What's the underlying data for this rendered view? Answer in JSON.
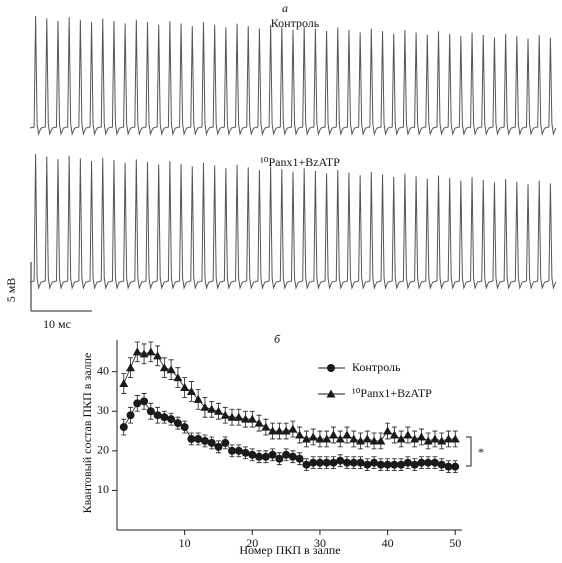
{
  "panel_a": {
    "label": "а",
    "traces": [
      {
        "name": "Контроль"
      },
      {
        "name": "¹⁰Panx1+BzATP"
      }
    ],
    "scale_y": "5 мВ",
    "scale_x": "10 мс"
  },
  "chart_data": {
    "type": "line",
    "panel_label": "б",
    "x_label": "Номер ПКП в залпе",
    "y_label": "Квантовый состав ПКП в залпе",
    "x": [
      1,
      2,
      3,
      4,
      5,
      6,
      7,
      8,
      9,
      10,
      11,
      12,
      13,
      14,
      15,
      16,
      17,
      18,
      19,
      20,
      21,
      22,
      23,
      24,
      25,
      26,
      27,
      28,
      29,
      30,
      31,
      32,
      33,
      34,
      35,
      36,
      37,
      38,
      39,
      40,
      41,
      42,
      43,
      44,
      45,
      46,
      47,
      48,
      49,
      50
    ],
    "series": [
      {
        "name": "Контроль",
        "color": "#1a1a1a",
        "marker": "circle",
        "values": [
          26,
          29,
          32,
          32.5,
          30,
          29,
          28.5,
          28,
          27,
          26,
          23,
          23,
          22.5,
          22,
          21,
          22,
          20,
          20,
          19.5,
          19,
          18.5,
          18.5,
          19,
          18,
          19,
          18.5,
          18,
          16.5,
          17,
          17,
          17,
          17,
          17.5,
          17,
          17,
          17,
          16.5,
          17,
          16.5,
          16.5,
          16.5,
          16.5,
          17,
          16.5,
          17,
          17,
          17,
          16.5,
          16,
          16
        ],
        "errors": [
          2,
          2,
          2,
          2,
          2,
          2,
          1.5,
          1.5,
          1.5,
          1.5,
          1.5,
          1.5,
          1.5,
          1.5,
          1.5,
          1.5,
          1.5,
          1.5,
          1.5,
          1.5,
          1.5,
          1.5,
          1.5,
          1.5,
          1.5,
          1.5,
          1.5,
          1.5,
          1.5,
          1.5,
          1.5,
          1.5,
          1.5,
          1.5,
          1.5,
          1.5,
          1.5,
          1.5,
          1.5,
          1.5,
          1.5,
          1.5,
          1.5,
          1.5,
          1.5,
          1.5,
          1.5,
          1.5,
          1.5,
          1.5
        ]
      },
      {
        "name": "¹⁰Panx1+BzATP",
        "color": "#1a1a1a",
        "marker": "triangle",
        "values": [
          37,
          41,
          45,
          44.5,
          45,
          44,
          41,
          40.5,
          38.5,
          36,
          35,
          33,
          31,
          30.5,
          30,
          29,
          28.5,
          28.5,
          28,
          28,
          27,
          26,
          25,
          25,
          25,
          25.5,
          24,
          23,
          23.5,
          23,
          23,
          24,
          23,
          24,
          23,
          22.5,
          23,
          22.5,
          22.5,
          25,
          24,
          23,
          24,
          23,
          23.5,
          22.5,
          23,
          22.5,
          23,
          23
        ],
        "errors": [
          2.5,
          2.5,
          2.5,
          2.5,
          2.5,
          2.5,
          2.5,
          2.5,
          2.5,
          2.5,
          2.5,
          2.5,
          2.5,
          2,
          2,
          2,
          2,
          2,
          2,
          2,
          2,
          2,
          2,
          2,
          2,
          2,
          2,
          2,
          2,
          2,
          2,
          2,
          2,
          2,
          2,
          2,
          2,
          2,
          2,
          2,
          2,
          2,
          2,
          2,
          2,
          2,
          2,
          2,
          2,
          2
        ]
      }
    ],
    "xlim": [
      0,
      51
    ],
    "ylim": [
      0,
      48
    ],
    "xticks": [
      10,
      20,
      30,
      40,
      50
    ],
    "yticks": [
      10,
      20,
      30,
      40
    ],
    "legend": "top-right",
    "annotation": "*"
  }
}
